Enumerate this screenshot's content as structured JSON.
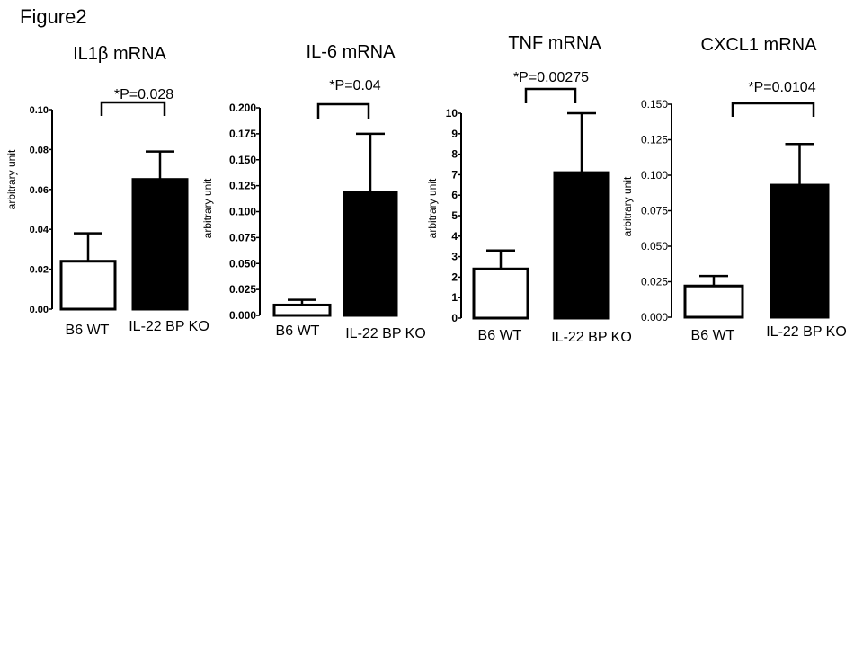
{
  "figure_title": "Figure2",
  "y_axis_label": "arbitrary unit",
  "chart_data": [
    {
      "type": "bar",
      "title": "IL1β mRNA",
      "ylabel": "arbitrary unit",
      "categories": [
        "B6 WT",
        "IL-22 BP KO"
      ],
      "values": [
        0.024,
        0.065
      ],
      "errors": [
        0.014,
        0.014
      ],
      "colors": [
        "#ffffff",
        "#000000"
      ],
      "ylim": [
        0,
        0.1
      ],
      "yticks": [
        "0.00",
        "0.02",
        "0.04",
        "0.06",
        "0.08",
        "0.10"
      ],
      "annotation": "*P=0.028"
    },
    {
      "type": "bar",
      "title": "IL-6 mRNA",
      "ylabel": "arbitrary unit",
      "categories": [
        "B6 WT",
        "IL-22 BP KO"
      ],
      "values": [
        0.01,
        0.119
      ],
      "errors": [
        0.005,
        0.056
      ],
      "colors": [
        "#ffffff",
        "#000000"
      ],
      "ylim": [
        0,
        0.2
      ],
      "yticks": [
        "0.000",
        "0.025",
        "0.050",
        "0.075",
        "0.100",
        "0.125",
        "0.150",
        "0.175",
        "0.200"
      ],
      "annotation": "*P=0.04"
    },
    {
      "type": "bar",
      "title": "TNF mRNA",
      "ylabel": "arbitrary unit",
      "categories": [
        "B6 WT",
        "IL-22 BP KO"
      ],
      "values": [
        2.4,
        7.1
      ],
      "errors": [
        0.9,
        2.9
      ],
      "colors": [
        "#ffffff",
        "#000000"
      ],
      "ylim": [
        0,
        10
      ],
      "yticks": [
        "0",
        "1",
        "2",
        "3",
        "4",
        "5",
        "6",
        "7",
        "8",
        "9",
        "10"
      ],
      "annotation": "*P=0.00275"
    },
    {
      "type": "bar",
      "title": "CXCL1 mRNA",
      "ylabel": "arbitrary unit",
      "categories": [
        "B6 WT",
        "IL-22 BP KO"
      ],
      "values": [
        0.022,
        0.093
      ],
      "errors": [
        0.007,
        0.029
      ],
      "colors": [
        "#ffffff",
        "#000000"
      ],
      "ylim": [
        0,
        0.15
      ],
      "yticks": [
        "0.000",
        "0.025",
        "0.050",
        "0.075",
        "0.100",
        "0.125",
        "0.150"
      ],
      "annotation": "*P=0.0104"
    }
  ]
}
